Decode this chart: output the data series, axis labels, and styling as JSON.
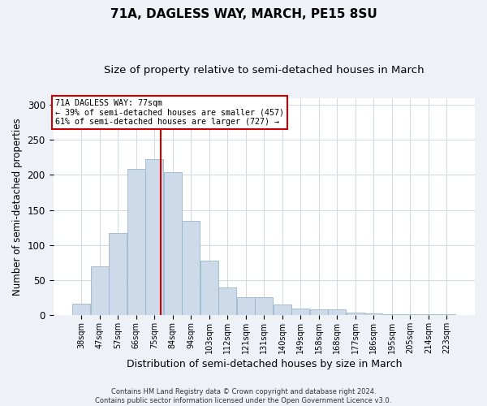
{
  "title": "71A, DAGLESS WAY, MARCH, PE15 8SU",
  "subtitle": "Size of property relative to semi-detached houses in March",
  "xlabel": "Distribution of semi-detached houses by size in March",
  "ylabel": "Number of semi-detached properties",
  "bar_labels": [
    "38sqm",
    "47sqm",
    "57sqm",
    "66sqm",
    "75sqm",
    "84sqm",
    "94sqm",
    "103sqm",
    "112sqm",
    "121sqm",
    "131sqm",
    "140sqm",
    "149sqm",
    "158sqm",
    "168sqm",
    "177sqm",
    "186sqm",
    "195sqm",
    "205sqm",
    "214sqm",
    "223sqm"
  ],
  "bar_values": [
    16,
    70,
    117,
    209,
    223,
    204,
    135,
    78,
    40,
    26,
    26,
    15,
    9,
    8,
    8,
    3,
    2,
    1,
    1,
    1,
    1
  ],
  "bar_color": "#ccdaea",
  "bar_edge_color": "#9ab4cc",
  "vline_color": "#cc0000",
  "annotation_title": "71A DAGLESS WAY: 77sqm",
  "annotation_line1": "← 39% of semi-detached houses are smaller (457)",
  "annotation_line2": "61% of semi-detached houses are larger (727) →",
  "annotation_box_color": "#ffffff",
  "annotation_box_edge": "#cc0000",
  "footer1": "Contains HM Land Registry data © Crown copyright and database right 2024.",
  "footer2": "Contains public sector information licensed under the Open Government Licence v3.0.",
  "ylim": [
    0,
    310
  ],
  "yticks": [
    0,
    50,
    100,
    150,
    200,
    250,
    300
  ],
  "background_color": "#eef2f7",
  "plot_background": "#ffffff",
  "title_fontsize": 11,
  "subtitle_fontsize": 9.5,
  "xlabel_fontsize": 9,
  "ylabel_fontsize": 8.5,
  "grid_color": "#d0d8e0",
  "vline_bar_index": 4
}
